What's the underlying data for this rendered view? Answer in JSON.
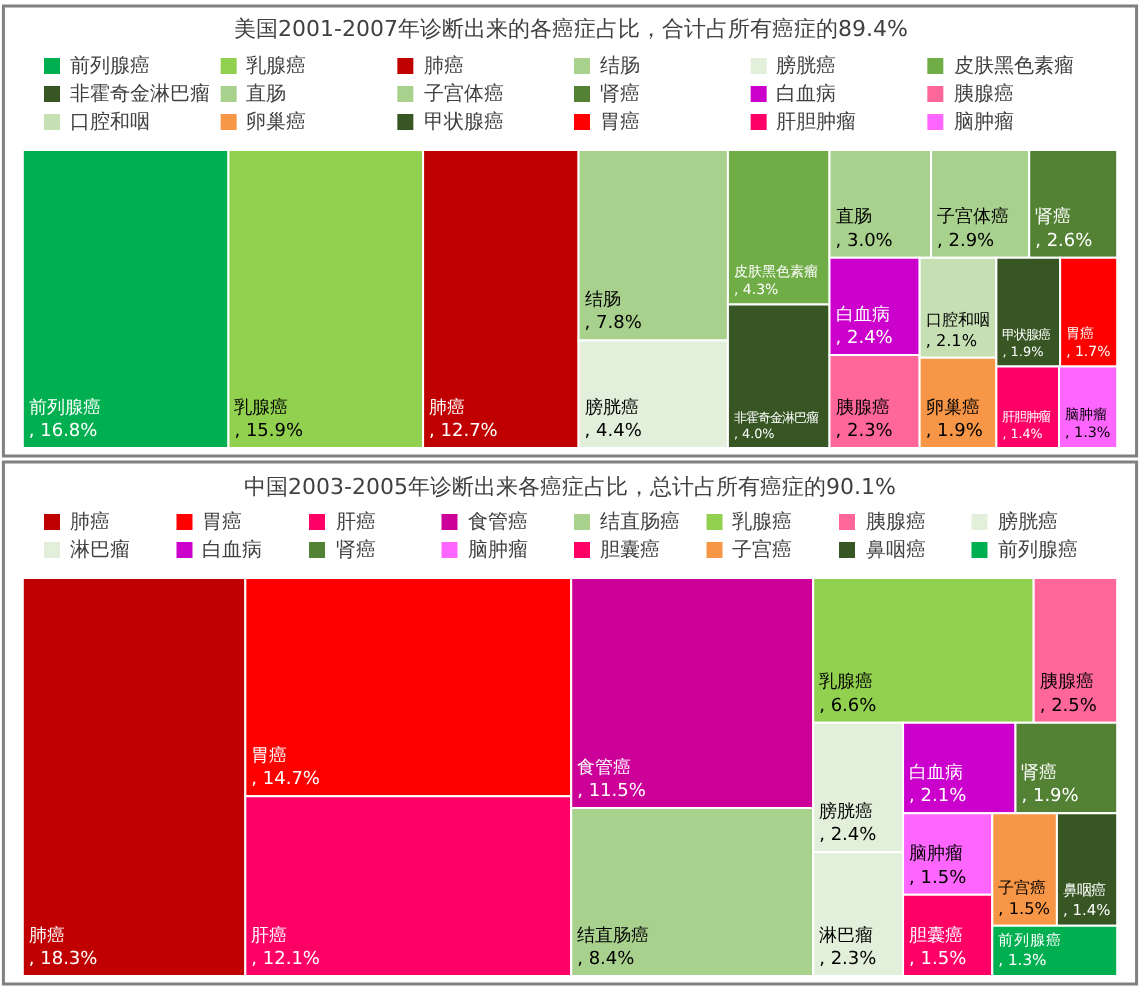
{
  "chart_data": [
    {
      "type": "other",
      "title": "美国2001-2007年诊断出来的各癌症占比，合计占所有癌症的89.4%",
      "categories": [
        "前列腺癌",
        "乳腺癌",
        "肺癌",
        "结肠",
        "膀胱癌",
        "皮肤黑色素瘤",
        "非霍奇金淋巴瘤",
        "直肠",
        "子宫体癌",
        "肾癌",
        "白血病",
        "胰腺癌",
        "口腔和咽",
        "卵巢癌",
        "甲状腺癌",
        "胃癌",
        "肝胆肿瘤",
        "脑肿瘤"
      ],
      "values": [
        16.8,
        15.9,
        12.7,
        7.8,
        4.4,
        4.3,
        4.0,
        3.0,
        2.9,
        2.6,
        2.4,
        2.3,
        2.1,
        1.9,
        1.9,
        1.7,
        1.4,
        1.3
      ],
      "value_labels": [
        ", 16.8%",
        ", 15.9%",
        ", 12.7%",
        ", 7.8%",
        ", 4.4%",
        ", 4.3%",
        ", 4.0%",
        ", 3.0%",
        ", 2.9%",
        ", 2.6%",
        ", 2.4%",
        ", 2.3%",
        ", 2.1%",
        ", 1.9%",
        ", 1.9%",
        ", 1.7%",
        ", 1.4%",
        ", 1.3%"
      ],
      "colors": [
        "#00b050",
        "#92d050",
        "#c00000",
        "#a9d18e",
        "#e2efda",
        "#70ad47",
        "#375623",
        "#a9d18e",
        "#a9d18e",
        "#548235",
        "#cc00cc",
        "#ff6699",
        "#c6e0b4",
        "#f79646",
        "#375623",
        "#ff0000",
        "#ff0066",
        "#ff66ff"
      ]
    },
    {
      "type": "other",
      "title": "中国2003-2005年诊断出来各癌症占比，总计占所有癌症的90.1%",
      "categories": [
        "肺癌",
        "胃癌",
        "肝癌",
        "食管癌",
        "结直肠癌",
        "乳腺癌",
        "胰腺癌",
        "膀胱癌",
        "淋巴瘤",
        "白血病",
        "肾癌",
        "脑肿瘤",
        "胆囊癌",
        "子宫癌",
        "鼻咽癌",
        "前列腺癌"
      ],
      "values": [
        18.3,
        14.7,
        12.1,
        11.5,
        8.4,
        6.6,
        2.5,
        2.4,
        2.3,
        2.1,
        1.9,
        1.5,
        1.5,
        1.5,
        1.4,
        1.3
      ],
      "value_labels": [
        ", 18.3%",
        ", 14.7%",
        ", 12.1%",
        ", 11.5%",
        ", 8.4%",
        ", 6.6%",
        ", 2.5%",
        ", 2.4%",
        ", 2.3%",
        ", 2.1%",
        ", 1.9%",
        ", 1.5%",
        ", 1.5%",
        ", 1.5%",
        ", 1.4%",
        ", 1.3%"
      ],
      "colors": [
        "#c00000",
        "#ff0000",
        "#ff0066",
        "#cc0099",
        "#a9d18e",
        "#92d050",
        "#ff6699",
        "#e2efda",
        "#e2efda",
        "#cc00cc",
        "#548235",
        "#ff66ff",
        "#ff0066",
        "#f79646",
        "#375623",
        "#00b050"
      ]
    }
  ]
}
